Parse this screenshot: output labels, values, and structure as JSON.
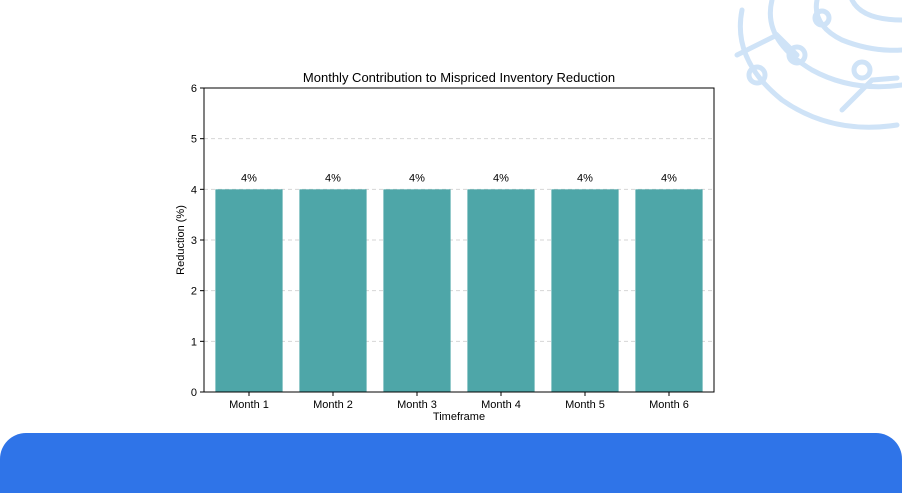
{
  "theme": {
    "bar_color": "#4ea6a8",
    "footer_color": "#2f74e8",
    "decor_color": "#cfe3f7",
    "grid_color": "#d6d6d6"
  },
  "decor": {
    "icon": "circuit-globe-icon"
  },
  "chart_data": {
    "type": "bar",
    "title": "Monthly Contribution to Mispriced Inventory Reduction",
    "xlabel": "Timeframe",
    "ylabel": "Reduction (%)",
    "categories": [
      "Month 1",
      "Month 2",
      "Month 3",
      "Month 4",
      "Month 5",
      "Month 6"
    ],
    "values": [
      4,
      4,
      4,
      4,
      4,
      4
    ],
    "data_labels": [
      "4%",
      "4%",
      "4%",
      "4%",
      "4%",
      "4%"
    ],
    "ylim": [
      0,
      6
    ],
    "yticks": [
      "0",
      "1",
      "2",
      "3",
      "4",
      "5",
      "6"
    ],
    "grid": "horizontal dashed",
    "legend": "none"
  }
}
